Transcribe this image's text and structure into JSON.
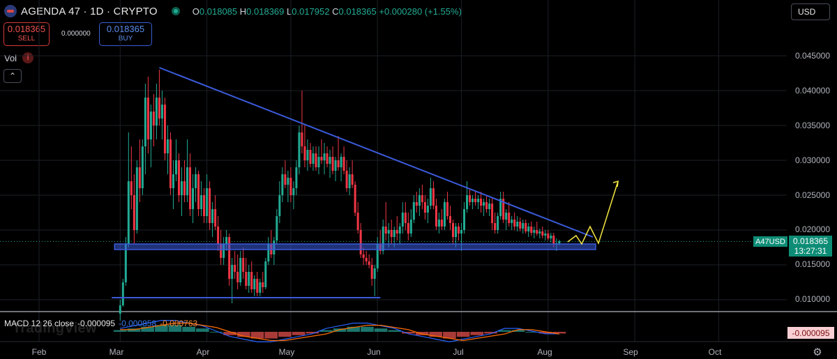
{
  "header": {
    "title": "AGENDA 47 · 1D · CRYPTO",
    "open_key": "O",
    "open": "0.018085",
    "high_key": "H",
    "high": "0.018369",
    "low_key": "L",
    "low": "0.017952",
    "close_key": "C",
    "close": "0.018365",
    "change": "+0.000280 (+1.55%)",
    "currency": "USD"
  },
  "trade": {
    "sell_price": "0.018365",
    "sell_label": "SELL",
    "spread": "0.000000",
    "buy_price": "0.018365",
    "buy_label": "BUY"
  },
  "indicators": {
    "vol_label": "Vol",
    "vol_warning": "!"
  },
  "macd": {
    "label": "MACD 12 26 close",
    "value1": "-0.000095",
    "value2": "-0.000858",
    "value3": "-0.000763",
    "tag": "-0.000095"
  },
  "price_axis": {
    "labels": [
      "0.045000",
      "0.040000",
      "0.035000",
      "0.030000",
      "0.025000",
      "0.020000",
      "0.015000",
      "0.010000"
    ],
    "symbol_tag": "A47USD",
    "last_price": "0.018365",
    "countdown": "13:27:31"
  },
  "time_axis": {
    "labels": [
      "Feb",
      "Mar",
      "Apr",
      "May",
      "Jun",
      "Jul",
      "Aug",
      "Sep",
      "Oct"
    ]
  },
  "watermark": "TradingView",
  "colors": {
    "up": "#22ab94",
    "down": "#f23645",
    "trendline": "#3b5bdb",
    "projection": "#f5e642",
    "macd_line": "#2962ff",
    "signal_line": "#ff6d00"
  },
  "chart_data": {
    "type": "candlestick",
    "symbol": "A47USD",
    "price_range": [
      0.0075,
      0.0475
    ],
    "x_range": [
      "2024-01-20",
      "2024-10-15"
    ],
    "last_price": 0.018365,
    "candles": [
      [
        "2024-03-01",
        0.008,
        0.01,
        0.007,
        0.0092
      ],
      [
        "2024-03-02",
        0.0092,
        0.013,
        0.009,
        0.0125
      ],
      [
        "2024-03-03",
        0.0125,
        0.019,
        0.012,
        0.018
      ],
      [
        "2024-03-04",
        0.018,
        0.034,
        0.0175,
        0.027
      ],
      [
        "2024-03-05",
        0.027,
        0.032,
        0.023,
        0.025
      ],
      [
        "2024-03-06",
        0.025,
        0.028,
        0.018,
        0.02
      ],
      [
        "2024-03-07",
        0.02,
        0.03,
        0.0195,
        0.029
      ],
      [
        "2024-03-08",
        0.029,
        0.033,
        0.024,
        0.026
      ],
      [
        "2024-03-09",
        0.026,
        0.033,
        0.025,
        0.032
      ],
      [
        "2024-03-10",
        0.032,
        0.041,
        0.028,
        0.039
      ],
      [
        "2024-03-11",
        0.039,
        0.042,
        0.031,
        0.033
      ],
      [
        "2024-03-12",
        0.033,
        0.038,
        0.029,
        0.037
      ],
      [
        "2024-03-13",
        0.037,
        0.0395,
        0.032,
        0.035
      ],
      [
        "2024-03-14",
        0.035,
        0.041,
        0.033,
        0.039
      ],
      [
        "2024-03-15",
        0.039,
        0.043,
        0.035,
        0.036
      ],
      [
        "2024-03-16",
        0.036,
        0.04,
        0.033,
        0.038
      ],
      [
        "2024-03-17",
        0.038,
        0.039,
        0.03,
        0.031
      ],
      [
        "2024-03-18",
        0.031,
        0.035,
        0.028,
        0.033
      ],
      [
        "2024-03-19",
        0.033,
        0.034,
        0.025,
        0.026
      ],
      [
        "2024-03-20",
        0.026,
        0.03,
        0.023,
        0.028
      ],
      [
        "2024-03-21",
        0.028,
        0.033,
        0.027,
        0.03
      ],
      [
        "2024-03-22",
        0.03,
        0.031,
        0.024,
        0.025
      ],
      [
        "2024-03-23",
        0.025,
        0.029,
        0.022,
        0.027
      ],
      [
        "2024-03-24",
        0.027,
        0.03,
        0.024,
        0.025
      ],
      [
        "2024-03-25",
        0.025,
        0.033,
        0.024,
        0.029
      ],
      [
        "2024-03-26",
        0.029,
        0.031,
        0.022,
        0.023
      ],
      [
        "2024-03-27",
        0.023,
        0.028,
        0.021,
        0.026
      ],
      [
        "2024-03-28",
        0.026,
        0.029,
        0.024,
        0.028
      ],
      [
        "2024-03-29",
        0.028,
        0.0285,
        0.022,
        0.023
      ],
      [
        "2024-03-30",
        0.023,
        0.027,
        0.022,
        0.025
      ],
      [
        "2024-03-31",
        0.025,
        0.026,
        0.021,
        0.022
      ],
      [
        "2024-04-01",
        0.022,
        0.028,
        0.021,
        0.026
      ],
      [
        "2024-04-02",
        0.026,
        0.027,
        0.02,
        0.021
      ],
      [
        "2024-04-03",
        0.021,
        0.024,
        0.019,
        0.023
      ],
      [
        "2024-04-04",
        0.023,
        0.025,
        0.02,
        0.0205
      ],
      [
        "2024-04-05",
        0.0205,
        0.022,
        0.017,
        0.018
      ],
      [
        "2024-04-06",
        0.018,
        0.02,
        0.015,
        0.016
      ],
      [
        "2024-04-07",
        0.016,
        0.019,
        0.015,
        0.018
      ],
      [
        "2024-04-08",
        0.018,
        0.02,
        0.017,
        0.019
      ],
      [
        "2024-04-09",
        0.019,
        0.0195,
        0.012,
        0.013
      ],
      [
        "2024-04-10",
        0.013,
        0.016,
        0.0095,
        0.015
      ],
      [
        "2024-04-11",
        0.015,
        0.017,
        0.013,
        0.014
      ],
      [
        "2024-04-12",
        0.014,
        0.0165,
        0.0115,
        0.0125
      ],
      [
        "2024-04-13",
        0.0125,
        0.017,
        0.012,
        0.016
      ],
      [
        "2024-04-14",
        0.016,
        0.0175,
        0.013,
        0.014
      ],
      [
        "2024-04-15",
        0.014,
        0.016,
        0.0115,
        0.012
      ],
      [
        "2024-04-16",
        0.012,
        0.015,
        0.011,
        0.014
      ],
      [
        "2024-04-17",
        0.014,
        0.0155,
        0.011,
        0.0115
      ],
      [
        "2024-04-18",
        0.0115,
        0.0135,
        0.0105,
        0.013
      ],
      [
        "2024-04-19",
        0.013,
        0.014,
        0.0105,
        0.011
      ],
      [
        "2024-04-20",
        0.011,
        0.013,
        0.0105,
        0.0125
      ],
      [
        "2024-04-21",
        0.0125,
        0.014,
        0.011,
        0.0118
      ],
      [
        "2024-04-22",
        0.0118,
        0.016,
        0.0115,
        0.0155
      ],
      [
        "2024-04-23",
        0.0155,
        0.019,
        0.015,
        0.018
      ],
      [
        "2024-04-24",
        0.018,
        0.02,
        0.016,
        0.0165
      ],
      [
        "2024-04-25",
        0.0165,
        0.019,
        0.015,
        0.0185
      ],
      [
        "2024-04-26",
        0.0185,
        0.023,
        0.018,
        0.022
      ],
      [
        "2024-04-27",
        0.022,
        0.027,
        0.021,
        0.025
      ],
      [
        "2024-04-28",
        0.025,
        0.029,
        0.024,
        0.028
      ],
      [
        "2024-04-29",
        0.028,
        0.03,
        0.026,
        0.0265
      ],
      [
        "2024-04-30",
        0.0265,
        0.0285,
        0.024,
        0.0275
      ],
      [
        "2024-05-01",
        0.0275,
        0.029,
        0.024,
        0.025
      ],
      [
        "2024-05-02",
        0.025,
        0.027,
        0.023,
        0.026
      ],
      [
        "2024-05-03",
        0.026,
        0.03,
        0.025,
        0.029
      ],
      [
        "2024-05-04",
        0.029,
        0.035,
        0.028,
        0.034
      ],
      [
        "2024-05-05",
        0.034,
        0.04,
        0.031,
        0.032
      ],
      [
        "2024-05-06",
        0.032,
        0.035,
        0.029,
        0.03
      ],
      [
        "2024-05-07",
        0.03,
        0.033,
        0.0285,
        0.0315
      ],
      [
        "2024-05-08",
        0.0315,
        0.0325,
        0.029,
        0.0295
      ],
      [
        "2024-05-09",
        0.0295,
        0.032,
        0.0285,
        0.031
      ],
      [
        "2024-05-10",
        0.031,
        0.032,
        0.0285,
        0.029
      ],
      [
        "2024-05-11",
        0.029,
        0.032,
        0.028,
        0.0305
      ],
      [
        "2024-05-12",
        0.0305,
        0.033,
        0.0295,
        0.03
      ],
      [
        "2024-05-13",
        0.03,
        0.0325,
        0.028,
        0.031
      ],
      [
        "2024-05-14",
        0.031,
        0.032,
        0.029,
        0.0295
      ],
      [
        "2024-05-15",
        0.0295,
        0.0315,
        0.0275,
        0.0305
      ],
      [
        "2024-05-16",
        0.0305,
        0.032,
        0.028,
        0.0285
      ],
      [
        "2024-05-17",
        0.0285,
        0.0305,
        0.027,
        0.03
      ],
      [
        "2024-05-18",
        0.03,
        0.0335,
        0.0285,
        0.029
      ],
      [
        "2024-05-19",
        0.029,
        0.031,
        0.027,
        0.0305
      ],
      [
        "2024-05-20",
        0.0305,
        0.032,
        0.028,
        0.0285
      ],
      [
        "2024-05-21",
        0.0285,
        0.03,
        0.0255,
        0.026
      ],
      [
        "2024-05-22",
        0.026,
        0.029,
        0.025,
        0.028
      ],
      [
        "2024-05-23",
        0.028,
        0.03,
        0.026,
        0.0265
      ],
      [
        "2024-05-24",
        0.0265,
        0.027,
        0.022,
        0.0225
      ],
      [
        "2024-05-25",
        0.0225,
        0.024,
        0.0195,
        0.02
      ],
      [
        "2024-05-26",
        0.02,
        0.021,
        0.016,
        0.0165
      ],
      [
        "2024-05-27",
        0.0165,
        0.0175,
        0.015,
        0.016
      ],
      [
        "2024-05-28",
        0.016,
        0.017,
        0.015,
        0.0155
      ],
      [
        "2024-05-29",
        0.0155,
        0.0165,
        0.0145,
        0.015
      ],
      [
        "2024-05-30",
        0.015,
        0.016,
        0.012,
        0.013
      ],
      [
        "2024-05-31",
        0.013,
        0.015,
        0.0105,
        0.0145
      ],
      [
        "2024-06-01",
        0.0145,
        0.019,
        0.014,
        0.018
      ],
      [
        "2024-06-02",
        0.018,
        0.02,
        0.0165,
        0.017
      ],
      [
        "2024-06-03",
        0.017,
        0.0215,
        0.0165,
        0.0205
      ],
      [
        "2024-06-04",
        0.0205,
        0.024,
        0.0185,
        0.0195
      ],
      [
        "2024-06-05",
        0.0195,
        0.021,
        0.0175,
        0.02
      ],
      [
        "2024-06-06",
        0.02,
        0.0215,
        0.018,
        0.019
      ],
      [
        "2024-06-07",
        0.019,
        0.0205,
        0.0175,
        0.02
      ],
      [
        "2024-06-08",
        0.02,
        0.022,
        0.0185,
        0.0195
      ],
      [
        "2024-06-09",
        0.0195,
        0.021,
        0.018,
        0.0205
      ],
      [
        "2024-06-10",
        0.0205,
        0.024,
        0.0195,
        0.0225
      ],
      [
        "2024-06-11",
        0.0225,
        0.024,
        0.02,
        0.021
      ],
      [
        "2024-06-12",
        0.021,
        0.0225,
        0.0185,
        0.0195
      ],
      [
        "2024-06-13",
        0.0195,
        0.023,
        0.019,
        0.0215
      ],
      [
        "2024-06-14",
        0.0215,
        0.025,
        0.021,
        0.024
      ],
      [
        "2024-06-15",
        0.024,
        0.0255,
        0.0225,
        0.0235
      ],
      [
        "2024-06-16",
        0.0235,
        0.026,
        0.022,
        0.025
      ],
      [
        "2024-06-17",
        0.025,
        0.0265,
        0.023,
        0.024
      ],
      [
        "2024-06-18",
        0.024,
        0.025,
        0.0215,
        0.0225
      ],
      [
        "2024-06-19",
        0.0225,
        0.0245,
        0.021,
        0.0235
      ],
      [
        "2024-06-20",
        0.0235,
        0.0275,
        0.023,
        0.026
      ],
      [
        "2024-06-21",
        0.026,
        0.027,
        0.023,
        0.0235
      ],
      [
        "2024-06-22",
        0.0235,
        0.0245,
        0.02,
        0.0205
      ],
      [
        "2024-06-23",
        0.0205,
        0.0225,
        0.0195,
        0.0215
      ],
      [
        "2024-06-24",
        0.0215,
        0.023,
        0.02,
        0.0205
      ],
      [
        "2024-06-25",
        0.0205,
        0.0245,
        0.02,
        0.024
      ],
      [
        "2024-06-26",
        0.024,
        0.0255,
        0.0215,
        0.022
      ],
      [
        "2024-06-27",
        0.022,
        0.0235,
        0.02,
        0.021
      ],
      [
        "2024-06-28",
        0.021,
        0.0215,
        0.018,
        0.019
      ],
      [
        "2024-06-29",
        0.019,
        0.021,
        0.0175,
        0.0205
      ],
      [
        "2024-06-30",
        0.0205,
        0.021,
        0.0185,
        0.0195
      ],
      [
        "2024-07-01",
        0.0195,
        0.021,
        0.017,
        0.02
      ],
      [
        "2024-07-02",
        0.02,
        0.024,
        0.0195,
        0.023
      ],
      [
        "2024-07-03",
        0.023,
        0.027,
        0.0225,
        0.025
      ],
      [
        "2024-07-04",
        0.025,
        0.026,
        0.0235,
        0.024
      ],
      [
        "2024-07-05",
        0.024,
        0.025,
        0.023,
        0.0245
      ],
      [
        "2024-07-06",
        0.0245,
        0.0255,
        0.0235,
        0.024
      ],
      [
        "2024-07-07",
        0.024,
        0.025,
        0.023,
        0.0245
      ],
      [
        "2024-07-08",
        0.0245,
        0.0255,
        0.0225,
        0.0235
      ],
      [
        "2024-07-09",
        0.0235,
        0.0245,
        0.022,
        0.024
      ],
      [
        "2024-07-10",
        0.024,
        0.025,
        0.0225,
        0.023
      ],
      [
        "2024-07-11",
        0.023,
        0.0245,
        0.022,
        0.0238
      ],
      [
        "2024-07-12",
        0.0238,
        0.0245,
        0.02,
        0.021
      ],
      [
        "2024-07-13",
        0.021,
        0.0225,
        0.0195,
        0.02
      ],
      [
        "2024-07-14",
        0.02,
        0.0225,
        0.0195,
        0.022
      ],
      [
        "2024-07-15",
        0.022,
        0.0255,
        0.0215,
        0.0245
      ],
      [
        "2024-07-16",
        0.0245,
        0.0255,
        0.021,
        0.0215
      ],
      [
        "2024-07-17",
        0.0215,
        0.023,
        0.02,
        0.0225
      ],
      [
        "2024-07-18",
        0.0225,
        0.024,
        0.0205,
        0.021
      ],
      [
        "2024-07-19",
        0.021,
        0.022,
        0.02,
        0.0215
      ],
      [
        "2024-07-20",
        0.0215,
        0.0225,
        0.02,
        0.0205
      ],
      [
        "2024-07-21",
        0.0205,
        0.022,
        0.0198,
        0.0212
      ],
      [
        "2024-07-22",
        0.0212,
        0.0218,
        0.0198,
        0.0202
      ],
      [
        "2024-07-23",
        0.0202,
        0.0215,
        0.0195,
        0.021
      ],
      [
        "2024-07-24",
        0.021,
        0.0215,
        0.0195,
        0.0198
      ],
      [
        "2024-07-25",
        0.0198,
        0.021,
        0.019,
        0.0205
      ],
      [
        "2024-07-26",
        0.0205,
        0.0212,
        0.0192,
        0.0196
      ],
      [
        "2024-07-27",
        0.0196,
        0.0205,
        0.0188,
        0.02
      ],
      [
        "2024-07-28",
        0.02,
        0.0212,
        0.0192,
        0.0195
      ],
      [
        "2024-07-29",
        0.0195,
        0.0202,
        0.0188,
        0.0198
      ],
      [
        "2024-07-30",
        0.0198,
        0.0205,
        0.0188,
        0.0192
      ],
      [
        "2024-07-31",
        0.0192,
        0.02,
        0.0185,
        0.0195
      ],
      [
        "2024-08-01",
        0.0195,
        0.02,
        0.0185,
        0.0188
      ],
      [
        "2024-08-02",
        0.0188,
        0.0196,
        0.0182,
        0.0192
      ],
      [
        "2024-08-03",
        0.0192,
        0.0196,
        0.0175,
        0.018
      ],
      [
        "2024-08-04",
        0.018,
        0.0188,
        0.017,
        0.0181
      ],
      [
        "2024-08-05",
        0.0181,
        0.0186,
        0.0178,
        0.0184
      ]
    ],
    "annotations": {
      "descending_trendline": [
        [
          "2024-03-15",
          0.0433
        ],
        [
          "2024-08-17",
          0.019
        ]
      ],
      "support_zone": {
        "x": [
          "2024-02-28",
          "2024-08-18"
        ],
        "y": [
          0.0172,
          0.018
        ]
      },
      "lower_support": {
        "x": [
          "2024-02-27",
          "2024-06-02"
        ],
        "y": 0.0103
      },
      "projection_path": [
        [
          "2024-08-08",
          0.0183
        ],
        [
          "2024-08-11",
          0.0192
        ],
        [
          "2024-08-13",
          0.018
        ],
        [
          "2024-08-16",
          0.0205
        ],
        [
          "2024-08-19",
          0.0181
        ],
        [
          "2024-08-26",
          0.027
        ]
      ]
    },
    "macd_panel": {
      "y_range": [
        -0.002,
        0.002
      ],
      "histogram_sample": [
        0.0001,
        0.0002,
        0.0003,
        0.0004,
        0.0004,
        0.0003,
        0.0002,
        0.0,
        -0.0002,
        -0.0003,
        -0.0004,
        -0.0004,
        -0.0003,
        -0.0002,
        -0.0001,
        0.0001,
        0.0002,
        0.0003,
        0.0003,
        0.0002,
        0.0001,
        -0.0001,
        -0.0002,
        -0.0003,
        -0.0004,
        -0.0003,
        -0.0002,
        -0.0001,
        0.0001,
        0.0001,
        0.0,
        -0.0001,
        -0.0001
      ]
    }
  }
}
